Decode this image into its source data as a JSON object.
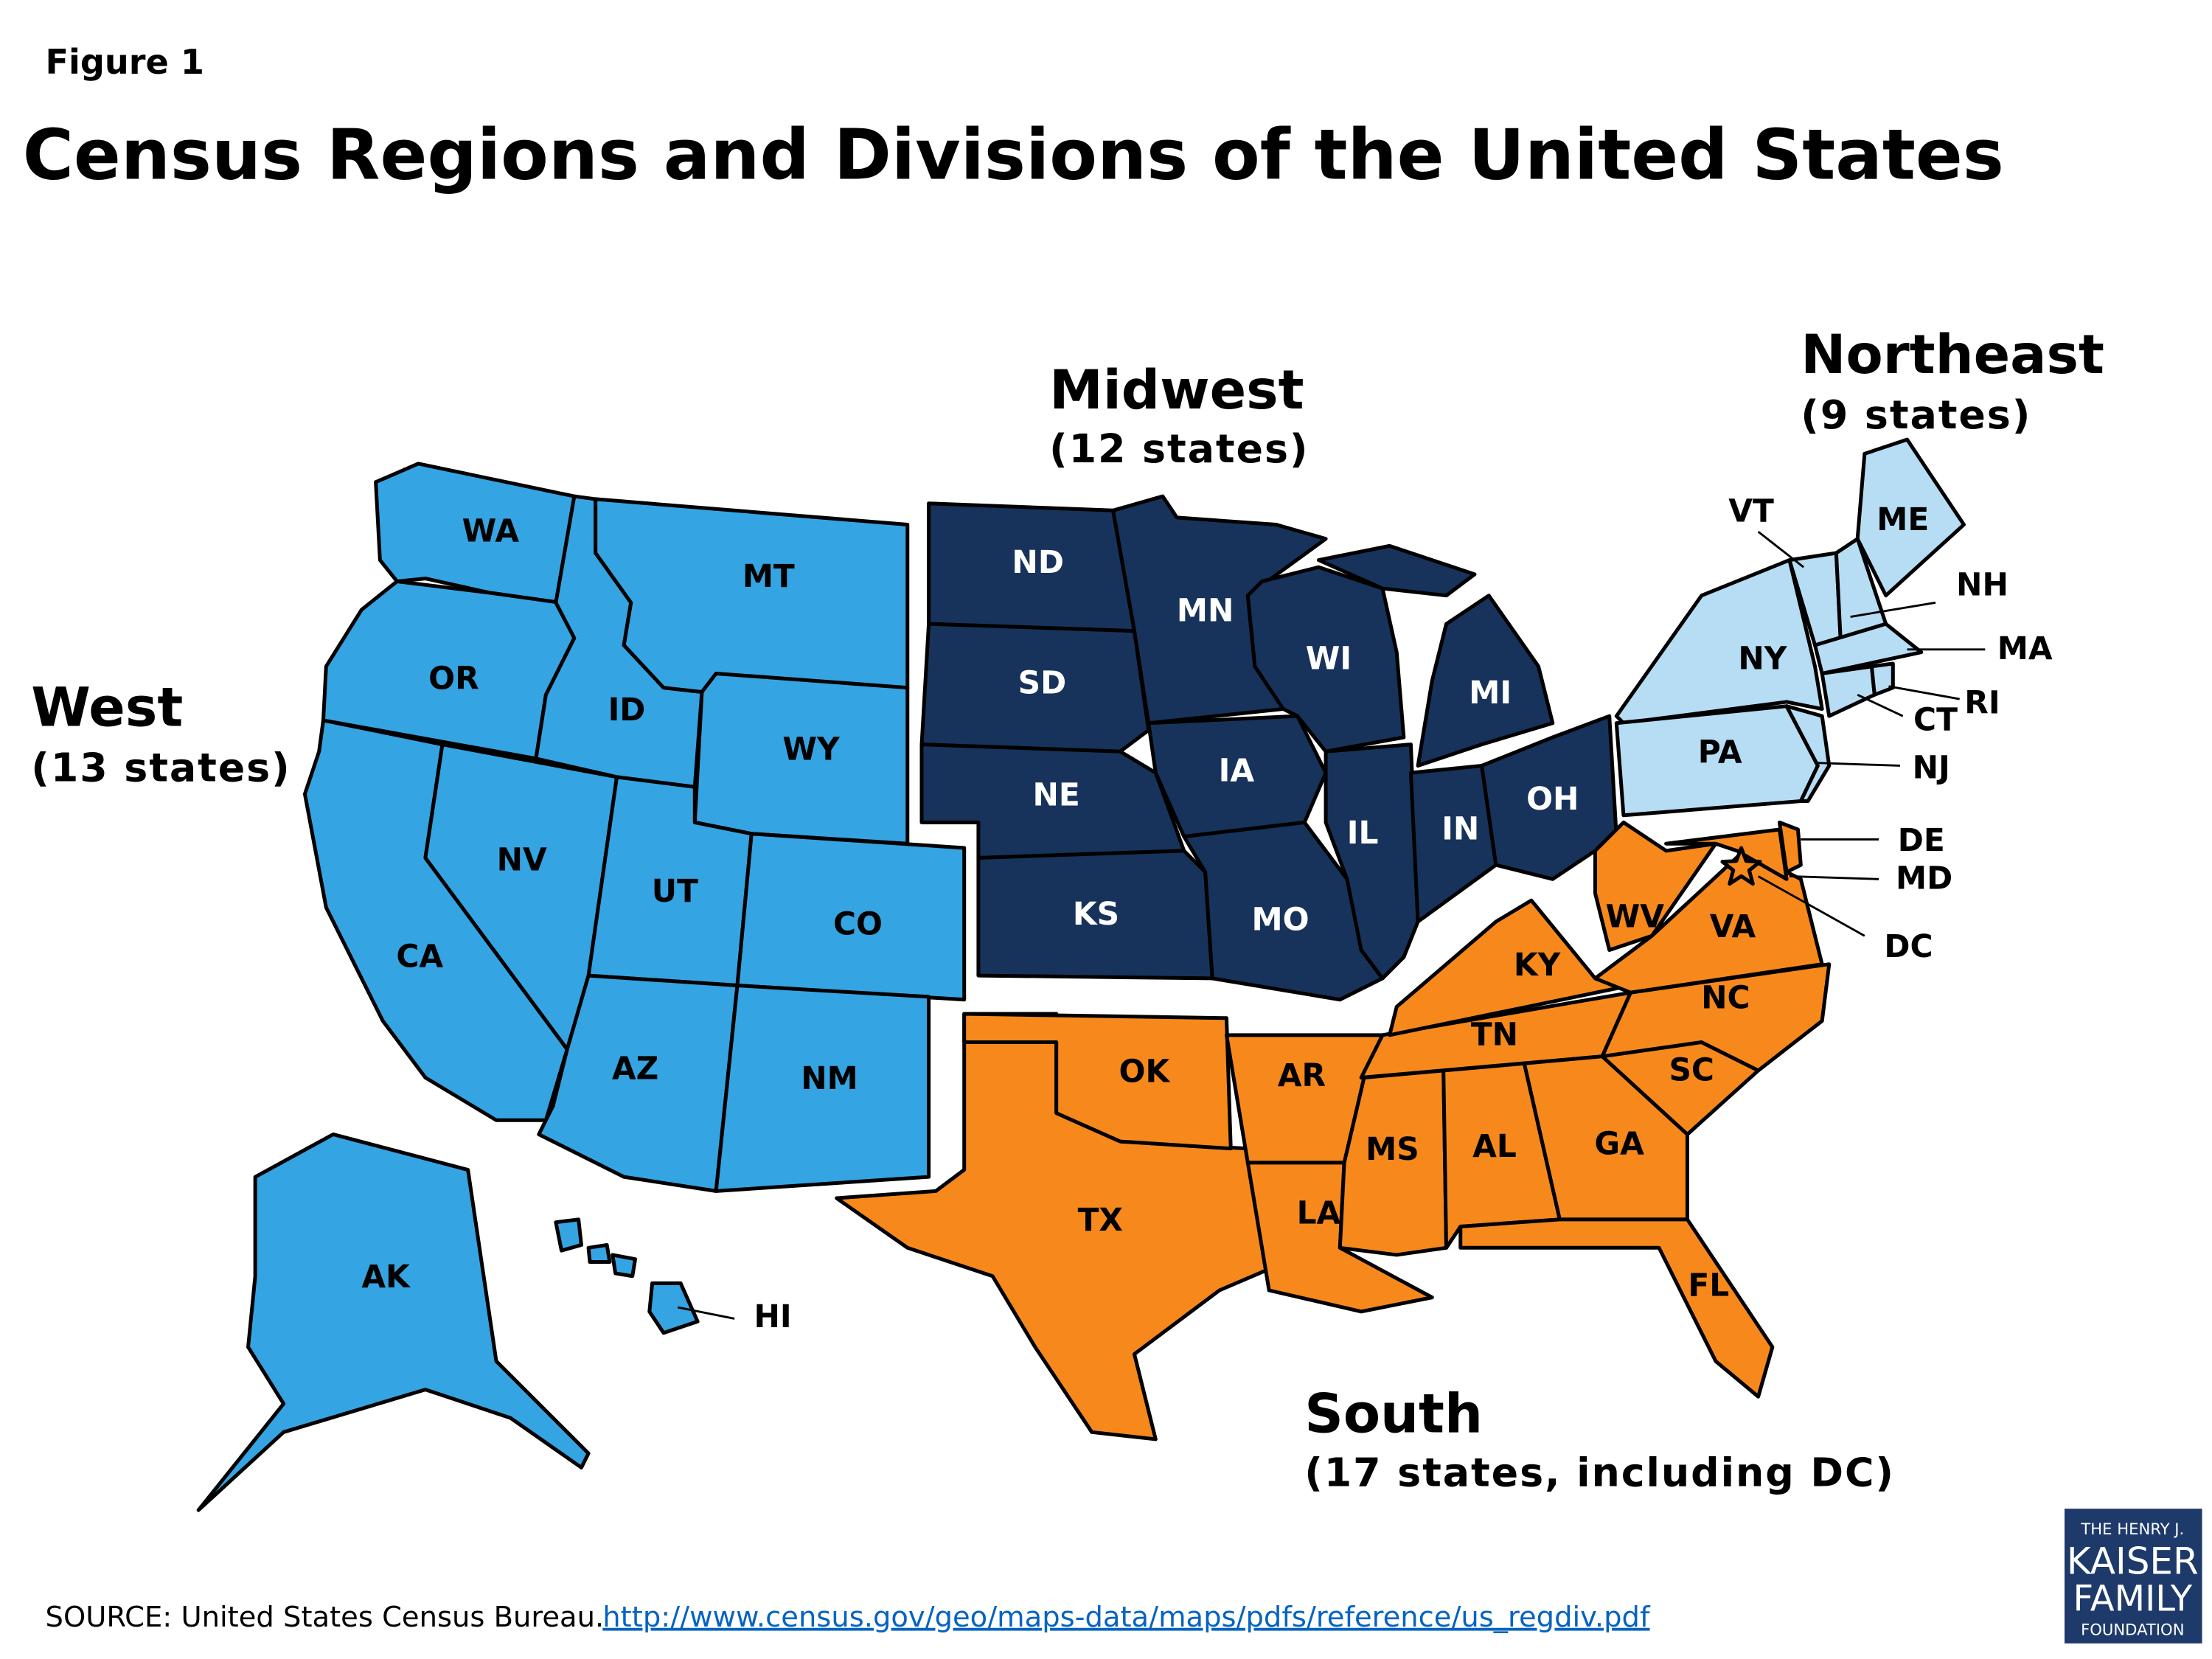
{
  "figure_label": "Figure 1",
  "title": "Census Regions and Divisions of the United States",
  "regions": [
    {
      "name": "West",
      "count": "(13 states)",
      "color": "#35a4e2",
      "states": [
        "WA",
        "OR",
        "CA",
        "NV",
        "ID",
        "MT",
        "WY",
        "UT",
        "CO",
        "AZ",
        "NM",
        "AK",
        "HI"
      ]
    },
    {
      "name": "Midwest",
      "count": "(12 states)",
      "color": "#17335b",
      "states": [
        "ND",
        "SD",
        "NE",
        "KS",
        "MN",
        "IA",
        "MO",
        "WI",
        "IL",
        "MI",
        "IN",
        "OH"
      ]
    },
    {
      "name": "Northeast",
      "count": "(9 states)",
      "color": "#b6ddf4",
      "states": [
        "NY",
        "PA",
        "NJ",
        "VT",
        "NH",
        "ME",
        "MA",
        "CT",
        "RI"
      ]
    },
    {
      "name": "South",
      "count": "(17 states, including DC)",
      "color": "#f7891c",
      "states": [
        "TX",
        "OK",
        "AR",
        "LA",
        "MS",
        "AL",
        "TN",
        "KY",
        "GA",
        "FL",
        "SC",
        "NC",
        "VA",
        "WV",
        "MD",
        "DE",
        "DC"
      ]
    }
  ],
  "source": {
    "prefix": "SOURCE: United States  Census Bureau.",
    "url": "http://www.census.gov/geo/maps-data/maps/pdfs/reference/us_regdiv.pdf"
  },
  "logo": [
    "THE HENRY J.",
    "KAISER",
    "FAMILY",
    "FOUNDATION"
  ]
}
